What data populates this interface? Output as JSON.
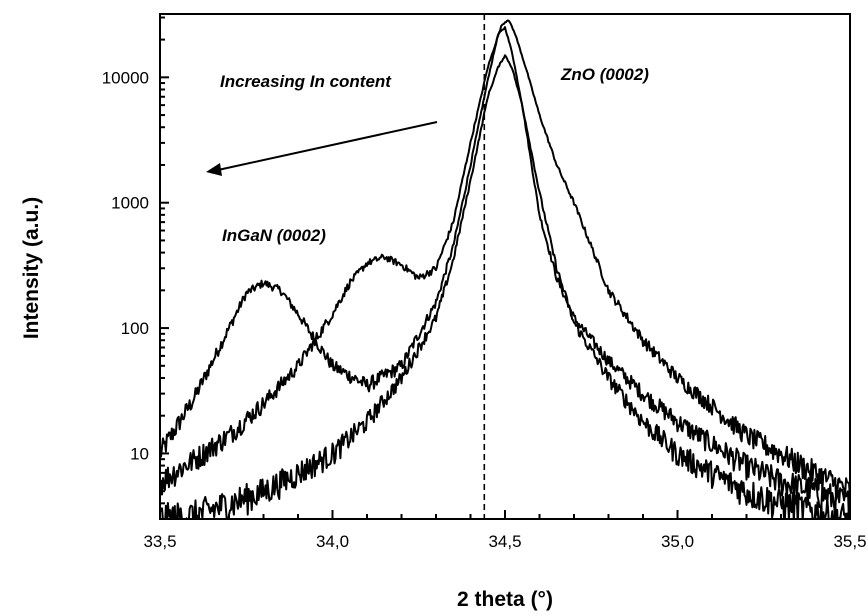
{
  "chart_data": {
    "type": "line",
    "xlabel": "2 theta (°)",
    "ylabel": "Intensity (a.u.)",
    "xlim": [
      33.5,
      35.5
    ],
    "ylim": [
      3,
      32000
    ],
    "y_scale": "log",
    "x_ticks": [
      33.5,
      34.0,
      34.5,
      35.0,
      35.5
    ],
    "x_tick_labels": [
      "33,5",
      "34,0",
      "34,5",
      "35,0",
      "35,5"
    ],
    "y_ticks": [
      10,
      100,
      1000,
      10000
    ],
    "y_tick_labels": [
      "10",
      "100",
      "1000",
      "10000"
    ],
    "grid": false,
    "reference_line_x": 34.44,
    "annotations": {
      "increasing": "Increasing In content",
      "zno": "ZnO (0002)",
      "ingan": "InGaN (0002)"
    },
    "series": [
      {
        "x": [
          33.5,
          33.6,
          33.7,
          33.75,
          33.8,
          33.85,
          33.9,
          33.95,
          34.0,
          34.1,
          34.2,
          34.3,
          34.35,
          34.4,
          34.45,
          34.48,
          34.5,
          34.52,
          34.55,
          34.6,
          34.65,
          34.7,
          34.8,
          34.9,
          35.0,
          35.1,
          35.2,
          35.3,
          35.4,
          35.5
        ],
        "y": [
          10,
          28,
          100,
          190,
          230,
          200,
          130,
          80,
          50,
          35,
          50,
          160,
          450,
          2000,
          9500,
          22000,
          25000,
          16000,
          6000,
          800,
          250,
          120,
          55,
          30,
          18,
          12,
          8,
          6,
          5,
          4
        ]
      },
      {
        "x": [
          33.5,
          33.6,
          33.7,
          33.8,
          33.9,
          34.0,
          34.05,
          34.1,
          34.15,
          34.2,
          34.25,
          34.3,
          34.35,
          34.4,
          34.45,
          34.49,
          34.51,
          34.53,
          34.56,
          34.6,
          34.65,
          34.7,
          34.75,
          34.8,
          34.9,
          35.0,
          35.1,
          35.2,
          35.3,
          35.4,
          35.5
        ],
        "y": [
          6,
          9,
          14,
          25,
          50,
          130,
          230,
          330,
          370,
          320,
          250,
          300,
          700,
          3000,
          12000,
          26000,
          29000,
          22000,
          12000,
          5000,
          2000,
          1000,
          450,
          200,
          80,
          40,
          24,
          14,
          10,
          7,
          5
        ]
      },
      {
        "x": [
          33.5,
          33.6,
          33.7,
          33.8,
          33.9,
          34.0,
          34.1,
          34.2,
          34.3,
          34.35,
          34.4,
          34.45,
          34.48,
          34.5,
          34.52,
          34.55,
          34.6,
          34.65,
          34.7,
          34.8,
          34.9,
          35.0,
          35.1,
          35.2,
          35.3,
          35.4,
          35.5
        ],
        "y": [
          3,
          3.2,
          4,
          5,
          7,
          10,
          18,
          40,
          120,
          350,
          1500,
          7000,
          12000,
          15000,
          12000,
          6000,
          1200,
          300,
          110,
          40,
          18,
          10,
          7,
          5,
          4,
          3.5,
          3
        ]
      }
    ]
  }
}
